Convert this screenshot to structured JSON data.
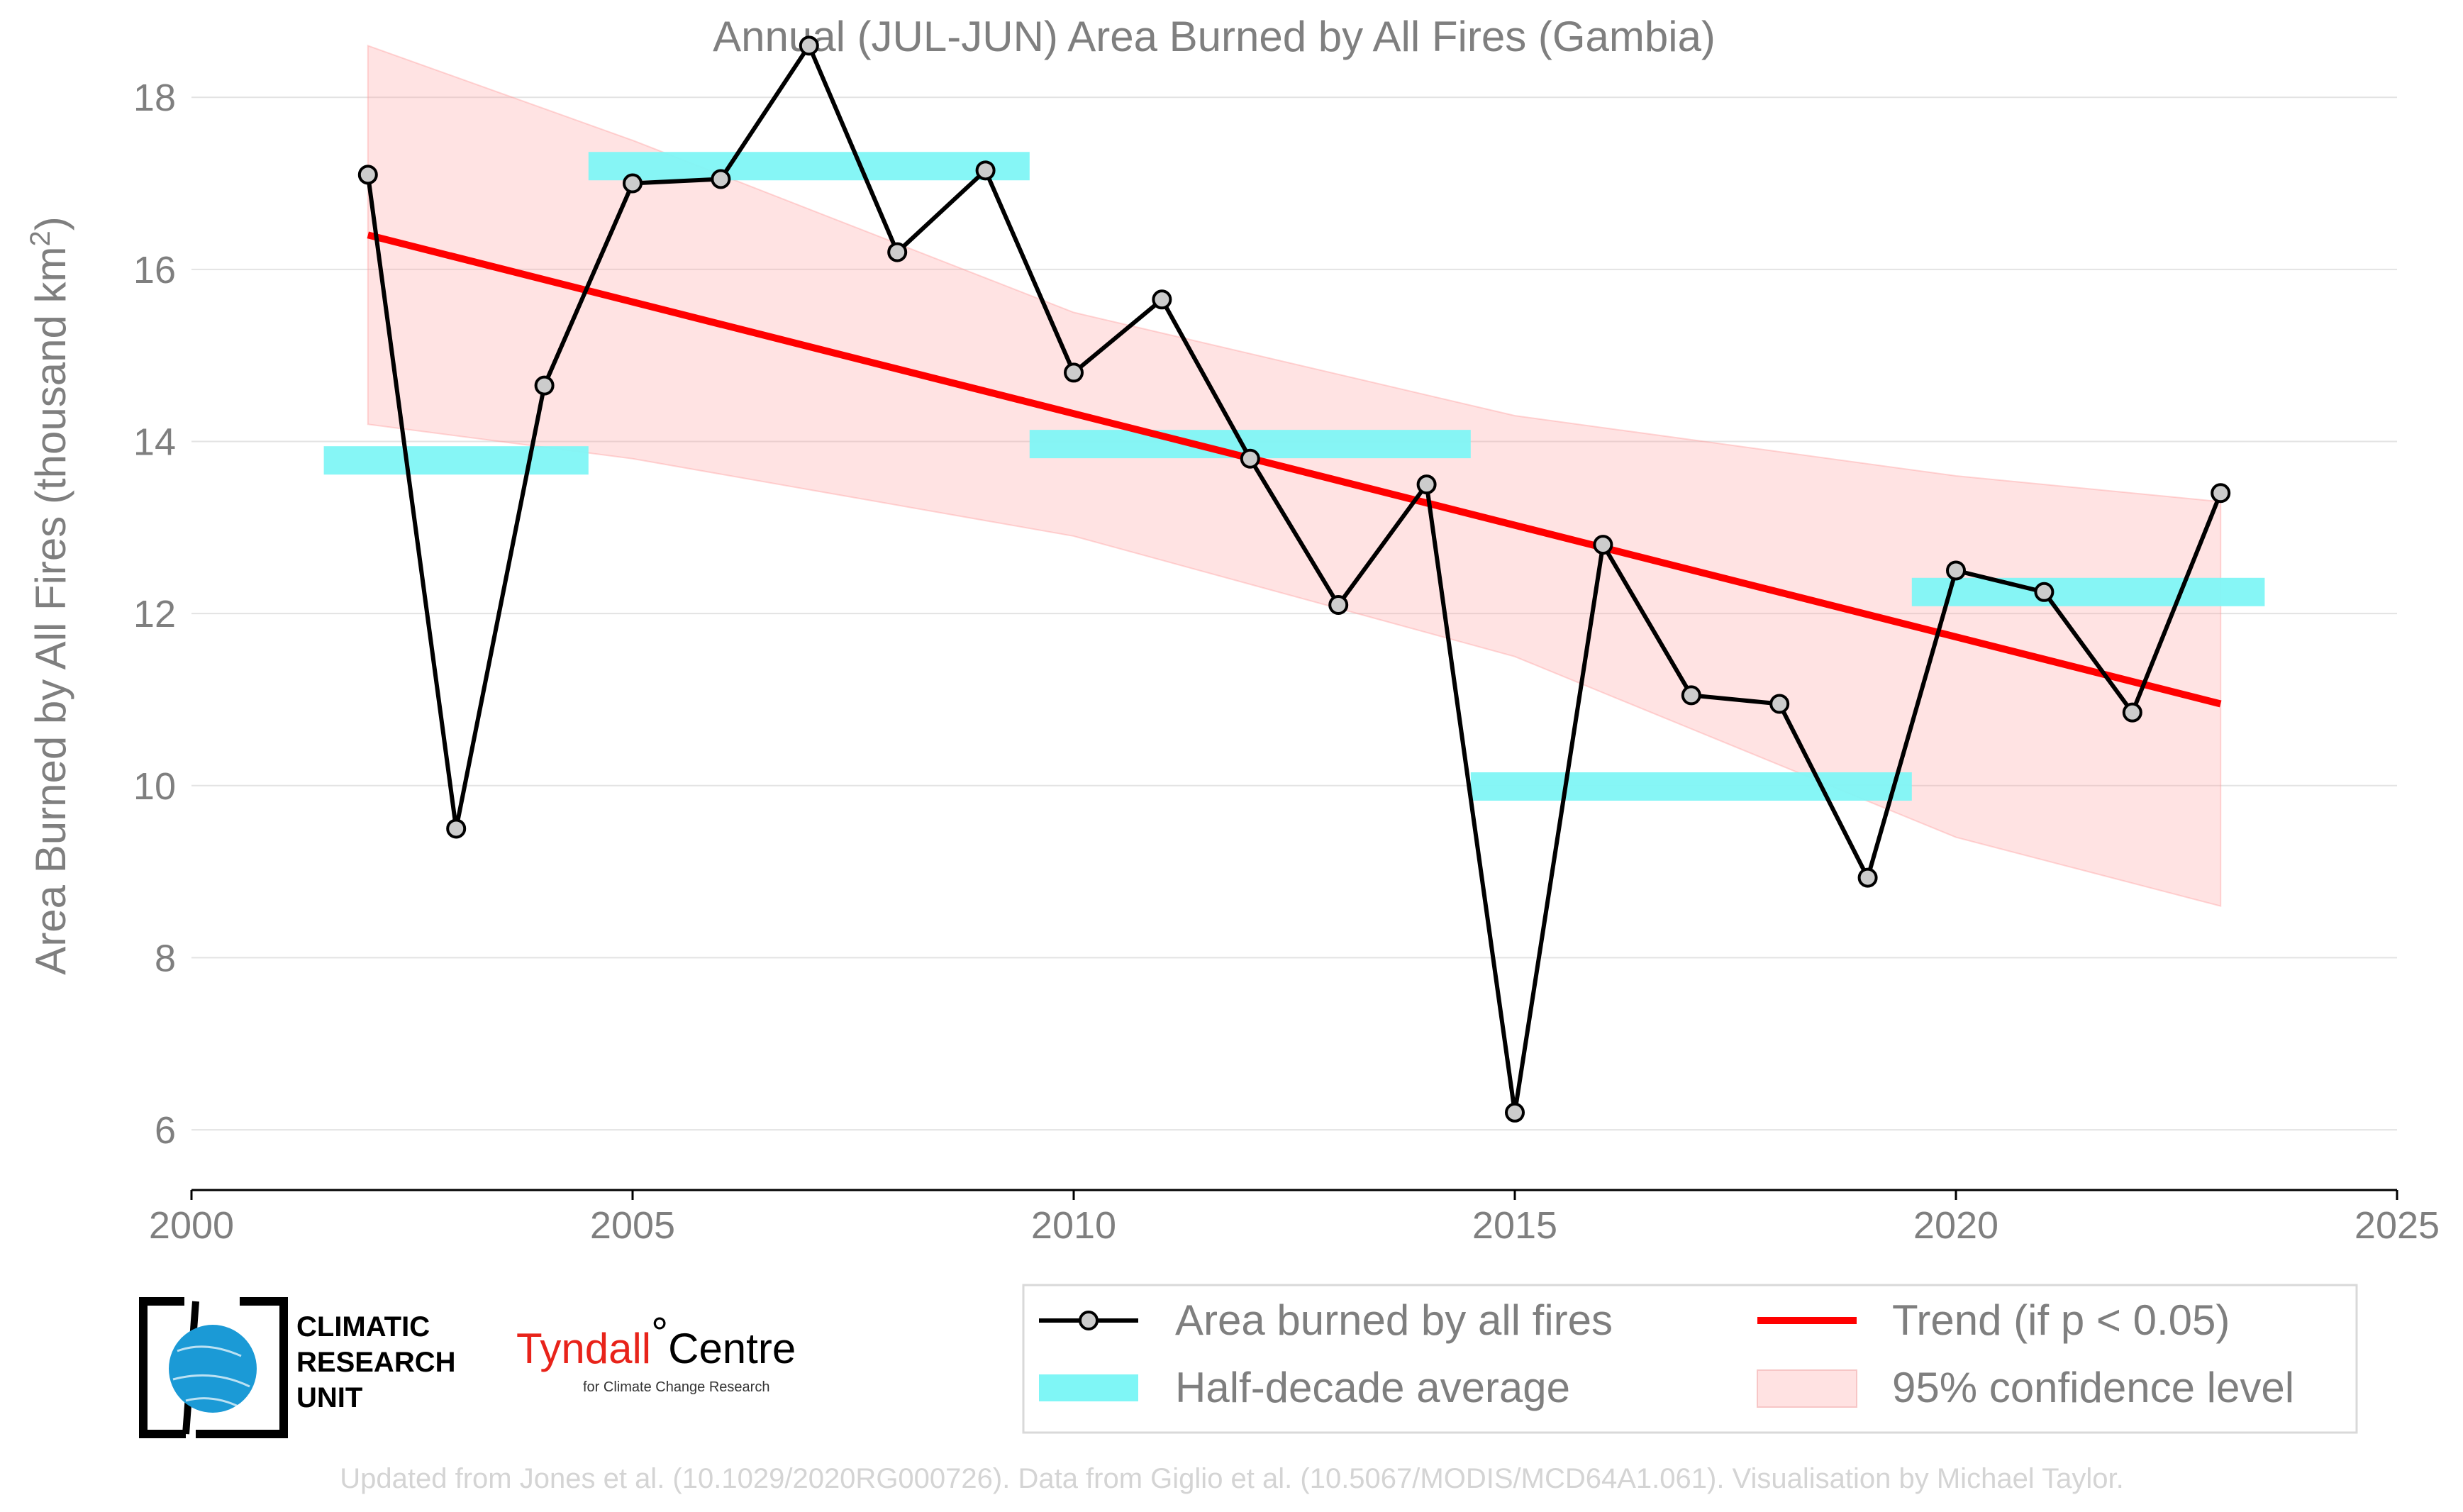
{
  "chart_data": {
    "type": "line",
    "title": "Annual (JUL-JUN) Area Burned by All Fires (Gambia)",
    "xlabel": "",
    "ylabel": "Area Burned by All Fires (thousand km",
    "ylabel_sup": "2",
    "ylabel_close": ")",
    "xlim": [
      2000,
      2025
    ],
    "ylim": [
      5.3,
      18.9
    ],
    "x_ticks": [
      2000,
      2005,
      2010,
      2015,
      2020,
      2025
    ],
    "y_ticks": [
      6,
      8,
      10,
      12,
      14,
      16,
      18
    ],
    "grid": "horizontal",
    "legend_position": "bottom-right",
    "series": [
      {
        "name": "Area burned by all fires",
        "color": "#000000",
        "marker_fill": "#cccccc",
        "x": [
          2002,
          2003,
          2004,
          2005,
          2006,
          2007,
          2008,
          2009,
          2010,
          2011,
          2012,
          2013,
          2014,
          2015,
          2016,
          2017,
          2018,
          2019,
          2020,
          2021,
          2022,
          2023
        ],
        "y": [
          17.1,
          9.5,
          14.65,
          17.0,
          17.05,
          18.6,
          16.2,
          17.15,
          14.8,
          15.65,
          13.8,
          12.1,
          13.5,
          6.2,
          12.8,
          11.05,
          10.95,
          8.93,
          12.5,
          12.25,
          10.85,
          13.4
        ]
      }
    ],
    "half_decade_average": {
      "name": "Half-decade average",
      "color": "#7ff6f6",
      "periods": [
        {
          "x0": 2001.5,
          "x1": 2004.5,
          "value": 13.78
        },
        {
          "x0": 2004.5,
          "x1": 2009.5,
          "value": 17.2
        },
        {
          "x0": 2009.5,
          "x1": 2014.5,
          "value": 13.97
        },
        {
          "x0": 2014.5,
          "x1": 2019.5,
          "value": 9.99
        },
        {
          "x0": 2019.5,
          "x1": 2023.5,
          "value": 12.25
        }
      ]
    },
    "trend": {
      "name": "Trend (if p < 0.05)",
      "color": "#ff0000",
      "x": [
        2002,
        2023
      ],
      "y": [
        16.4,
        10.95
      ]
    },
    "confidence": {
      "name": "95% confidence level",
      "color": "#ffd6d6",
      "x": [
        2002,
        2005,
        2010,
        2015,
        2020,
        2023
      ],
      "upper": [
        18.6,
        17.5,
        15.5,
        14.3,
        13.6,
        13.3
      ],
      "lower": [
        14.2,
        13.8,
        12.9,
        11.5,
        9.4,
        8.6
      ]
    }
  },
  "legend": {
    "items": [
      {
        "label": "Area burned by all fires"
      },
      {
        "label": "Half-decade average"
      },
      {
        "label": "Trend (if p < 0.05)"
      },
      {
        "label": "95% confidence level"
      }
    ]
  },
  "logos": {
    "cru_line1": "CLIMATIC",
    "cru_line2": "RESEARCH",
    "cru_line3": "UNIT",
    "tyndall_name": "Tyndall",
    "tyndall_degree": "°",
    "tyndall_centre": "Centre",
    "tyndall_sub": "for Climate Change Research"
  },
  "footnote": "Updated from Jones et al. (10.1029/2020RG000726). Data from Giglio et al. (10.5067/MODIS/MCD64A1.061). Visualisation by Michael Taylor."
}
